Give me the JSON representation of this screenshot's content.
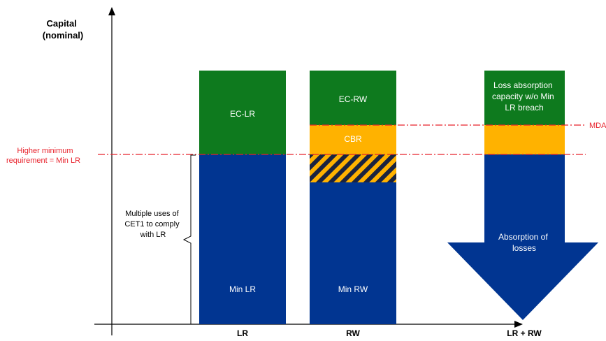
{
  "axis": {
    "y_title": [
      "Capital",
      "(nominal)"
    ],
    "x_labels": [
      "LR",
      "RW",
      "LR + RW"
    ]
  },
  "lines": {
    "higher_min_requirement": [
      "Higher minimum",
      "requirement = Min LR"
    ],
    "mda": "MDA"
  },
  "brace_note": [
    "Multiple uses of",
    "CET1 to comply",
    "with LR"
  ],
  "bars": {
    "lr": {
      "top": "EC-LR",
      "bottom": "Min LR"
    },
    "rw": {
      "top": "EC-RW",
      "middle": "CBR",
      "bottom": "Min RW"
    },
    "combined": {
      "top": [
        "Loss absorption",
        "capacity w/o Min",
        "LR breach"
      ],
      "arrow": [
        "Absorption of",
        "losses"
      ]
    }
  },
  "colors": {
    "green": "#0e7a1e",
    "blue": "#013591",
    "orange": "#ffb200",
    "red": "#e8202a",
    "axis": "#000000"
  }
}
